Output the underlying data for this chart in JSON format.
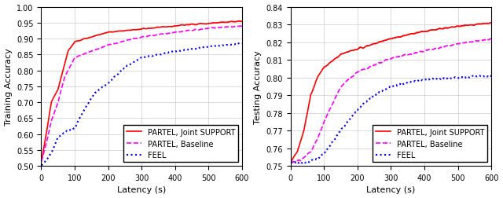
{
  "left": {
    "ylabel": "Training Accuracy",
    "xlabel": "Latency (s)",
    "xlim": [
      0,
      600
    ],
    "ylim": [
      0.5,
      1.0
    ],
    "yticks": [
      0.5,
      0.55,
      0.6,
      0.65,
      0.7,
      0.75,
      0.8,
      0.85,
      0.9,
      0.95,
      1.0
    ],
    "xticks": [
      0,
      100,
      200,
      300,
      400,
      500,
      600
    ]
  },
  "right": {
    "ylabel": "Testing Accuracy",
    "xlabel": "Latency (s)",
    "xlim": [
      0,
      600
    ],
    "ylim": [
      0.75,
      0.84
    ],
    "yticks": [
      0.75,
      0.76,
      0.77,
      0.78,
      0.79,
      0.8,
      0.81,
      0.82,
      0.83,
      0.84
    ],
    "xticks": [
      0,
      100,
      200,
      300,
      400,
      500,
      600
    ]
  },
  "curves": {
    "partel_joint": {
      "label": "PARTEL, Joint SUPPORT",
      "color": "#ff0000",
      "linestyle": "-",
      "linewidth": 1.2
    },
    "partel_baseline": {
      "label": "PARTEL, Baseline",
      "color": "#ff00ff",
      "linestyle": "--",
      "linewidth": 1.2
    },
    "feel": {
      "label": "FEEL",
      "color": "#0000ff",
      "linestyle": ":",
      "linewidth": 1.5
    }
  },
  "legend_fontsize": 7,
  "tick_fontsize": 7,
  "label_fontsize": 8,
  "background_color": "#ffffff"
}
